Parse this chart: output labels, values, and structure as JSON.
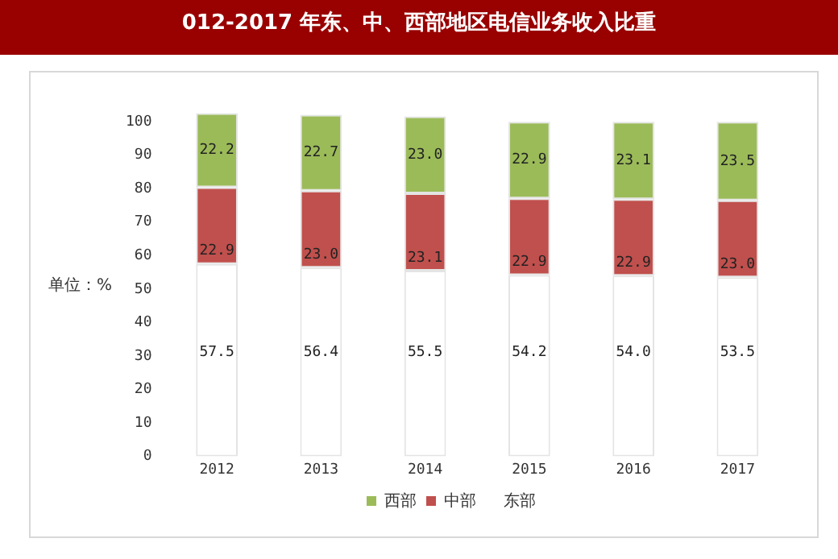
{
  "chart_data": {
    "type": "bar",
    "title": "012-2017 年东、中、西部地区电信业务收入比重",
    "ylabel": "单位：%",
    "categories": [
      "2012",
      "2013",
      "2014",
      "2015",
      "2016",
      "2017"
    ],
    "stacked": true,
    "series": [
      {
        "name": "东部",
        "color": "#ffffff",
        "values": [
          57.5,
          56.4,
          55.5,
          54.2,
          54.0,
          53.5
        ],
        "value_labels": [
          "57.5",
          "56.4",
          "55.5",
          "54.2",
          "54.0",
          "53.5"
        ]
      },
      {
        "name": "中部",
        "color": "#c0504d",
        "values": [
          22.9,
          23.0,
          23.1,
          22.9,
          22.9,
          23.0
        ],
        "value_labels": [
          "22.9",
          "23.0",
          "23.1",
          "22.9",
          "22.9",
          "23.0"
        ]
      },
      {
        "name": "西部",
        "color": "#9bbb59",
        "values": [
          22.2,
          22.7,
          23.0,
          22.9,
          23.1,
          23.5
        ],
        "value_labels": [
          "22.2",
          "22.7",
          "23.0",
          "22.9",
          "23.1",
          "23.5"
        ]
      }
    ],
    "ylim": [
      0,
      103
    ],
    "yticks": [
      0,
      10,
      20,
      30,
      40,
      50,
      60,
      70,
      80,
      90,
      100
    ],
    "grid": false,
    "legend": "bottom"
  }
}
